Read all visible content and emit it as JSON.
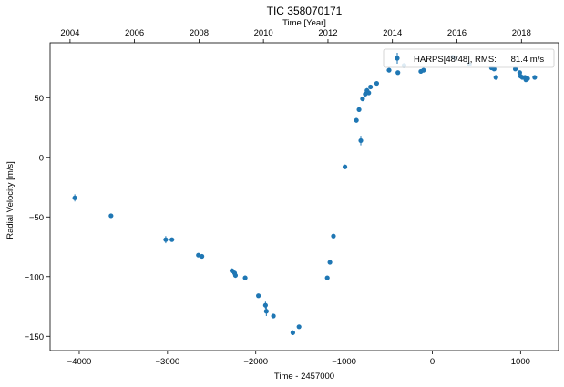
{
  "chart_data": {
    "type": "scatter",
    "title": "TIC 358070171",
    "xlabel": "Time - 2457000",
    "ylabel": "Radial Velocity [m/s]",
    "top_xlabel": "Time [Year]",
    "xlim": [
      -4330,
      1430
    ],
    "ylim": [
      -162,
      96
    ],
    "xticks": [
      -4000,
      -3000,
      -2000,
      -1000,
      0,
      1000
    ],
    "yticks": [
      -150,
      -100,
      -50,
      0,
      50
    ],
    "top_ticks": [
      {
        "label": "2004",
        "x": -4104
      },
      {
        "label": "2006",
        "x": -3374
      },
      {
        "label": "2008",
        "x": -2643
      },
      {
        "label": "2010",
        "x": -1913
      },
      {
        "label": "2012",
        "x": -1182
      },
      {
        "label": "2014",
        "x": -452
      },
      {
        "label": "2016",
        "x": 279
      },
      {
        "label": "2018",
        "x": 1010
      }
    ],
    "grid": false,
    "legend_position": "top-right",
    "marker_color": "#1f77b4",
    "series": [
      {
        "name": "HARPS[48/48], RMS:      81.4 m/s",
        "points": [
          {
            "x": -4050,
            "y": -34,
            "err": 3
          },
          {
            "x": -3640,
            "y": -49,
            "err": 1
          },
          {
            "x": -3020,
            "y": -69,
            "err": 3
          },
          {
            "x": -2950,
            "y": -69,
            "err": 1
          },
          {
            "x": -2650,
            "y": -82,
            "err": 1
          },
          {
            "x": -2610,
            "y": -83,
            "err": 1
          },
          {
            "x": -2270,
            "y": -95,
            "err": 1
          },
          {
            "x": -2240,
            "y": -97,
            "err": 2
          },
          {
            "x": -2230,
            "y": -99,
            "err": 2
          },
          {
            "x": -2120,
            "y": -101,
            "err": 2
          },
          {
            "x": -1970,
            "y": -116,
            "err": 1
          },
          {
            "x": -1890,
            "y": -124,
            "err": 3
          },
          {
            "x": -1880,
            "y": -129,
            "err": 4
          },
          {
            "x": -1800,
            "y": -133,
            "err": 1
          },
          {
            "x": -1580,
            "y": -147,
            "err": 2
          },
          {
            "x": -1510,
            "y": -142,
            "err": 1
          },
          {
            "x": -1190,
            "y": -101,
            "err": 1
          },
          {
            "x": -1160,
            "y": -88,
            "err": 1
          },
          {
            "x": -1120,
            "y": -66,
            "err": 1
          },
          {
            "x": -990,
            "y": -8,
            "err": 1
          },
          {
            "x": -860,
            "y": 31,
            "err": 2
          },
          {
            "x": -830,
            "y": 40,
            "err": 2
          },
          {
            "x": -810,
            "y": 14,
            "err": 4
          },
          {
            "x": -790,
            "y": 49,
            "err": 2
          },
          {
            "x": -760,
            "y": 53,
            "err": 2
          },
          {
            "x": -740,
            "y": 56,
            "err": 2
          },
          {
            "x": -720,
            "y": 54,
            "err": 1
          },
          {
            "x": -700,
            "y": 59,
            "err": 1
          },
          {
            "x": -630,
            "y": 62,
            "err": 1
          },
          {
            "x": -490,
            "y": 73,
            "err": 1
          },
          {
            "x": -390,
            "y": 71,
            "err": 1
          },
          {
            "x": -320,
            "y": 77,
            "err": 1
          },
          {
            "x": -130,
            "y": 72,
            "err": 1
          },
          {
            "x": -100,
            "y": 73,
            "err": 1
          },
          {
            "x": 230,
            "y": 84,
            "err": 2
          },
          {
            "x": 260,
            "y": 83,
            "err": 2
          },
          {
            "x": 420,
            "y": 78,
            "err": 1
          },
          {
            "x": 670,
            "y": 75,
            "err": 1
          },
          {
            "x": 700,
            "y": 74,
            "err": 1
          },
          {
            "x": 720,
            "y": 67,
            "err": 1
          },
          {
            "x": 940,
            "y": 74,
            "err": 1
          },
          {
            "x": 990,
            "y": 71,
            "err": 1
          },
          {
            "x": 1000,
            "y": 68,
            "err": 1
          },
          {
            "x": 1020,
            "y": 67,
            "err": 1
          },
          {
            "x": 1050,
            "y": 67,
            "err": 1
          },
          {
            "x": 1060,
            "y": 65,
            "err": 1
          },
          {
            "x": 1080,
            "y": 66,
            "err": 1
          },
          {
            "x": 1160,
            "y": 67,
            "err": 1
          }
        ]
      }
    ]
  }
}
